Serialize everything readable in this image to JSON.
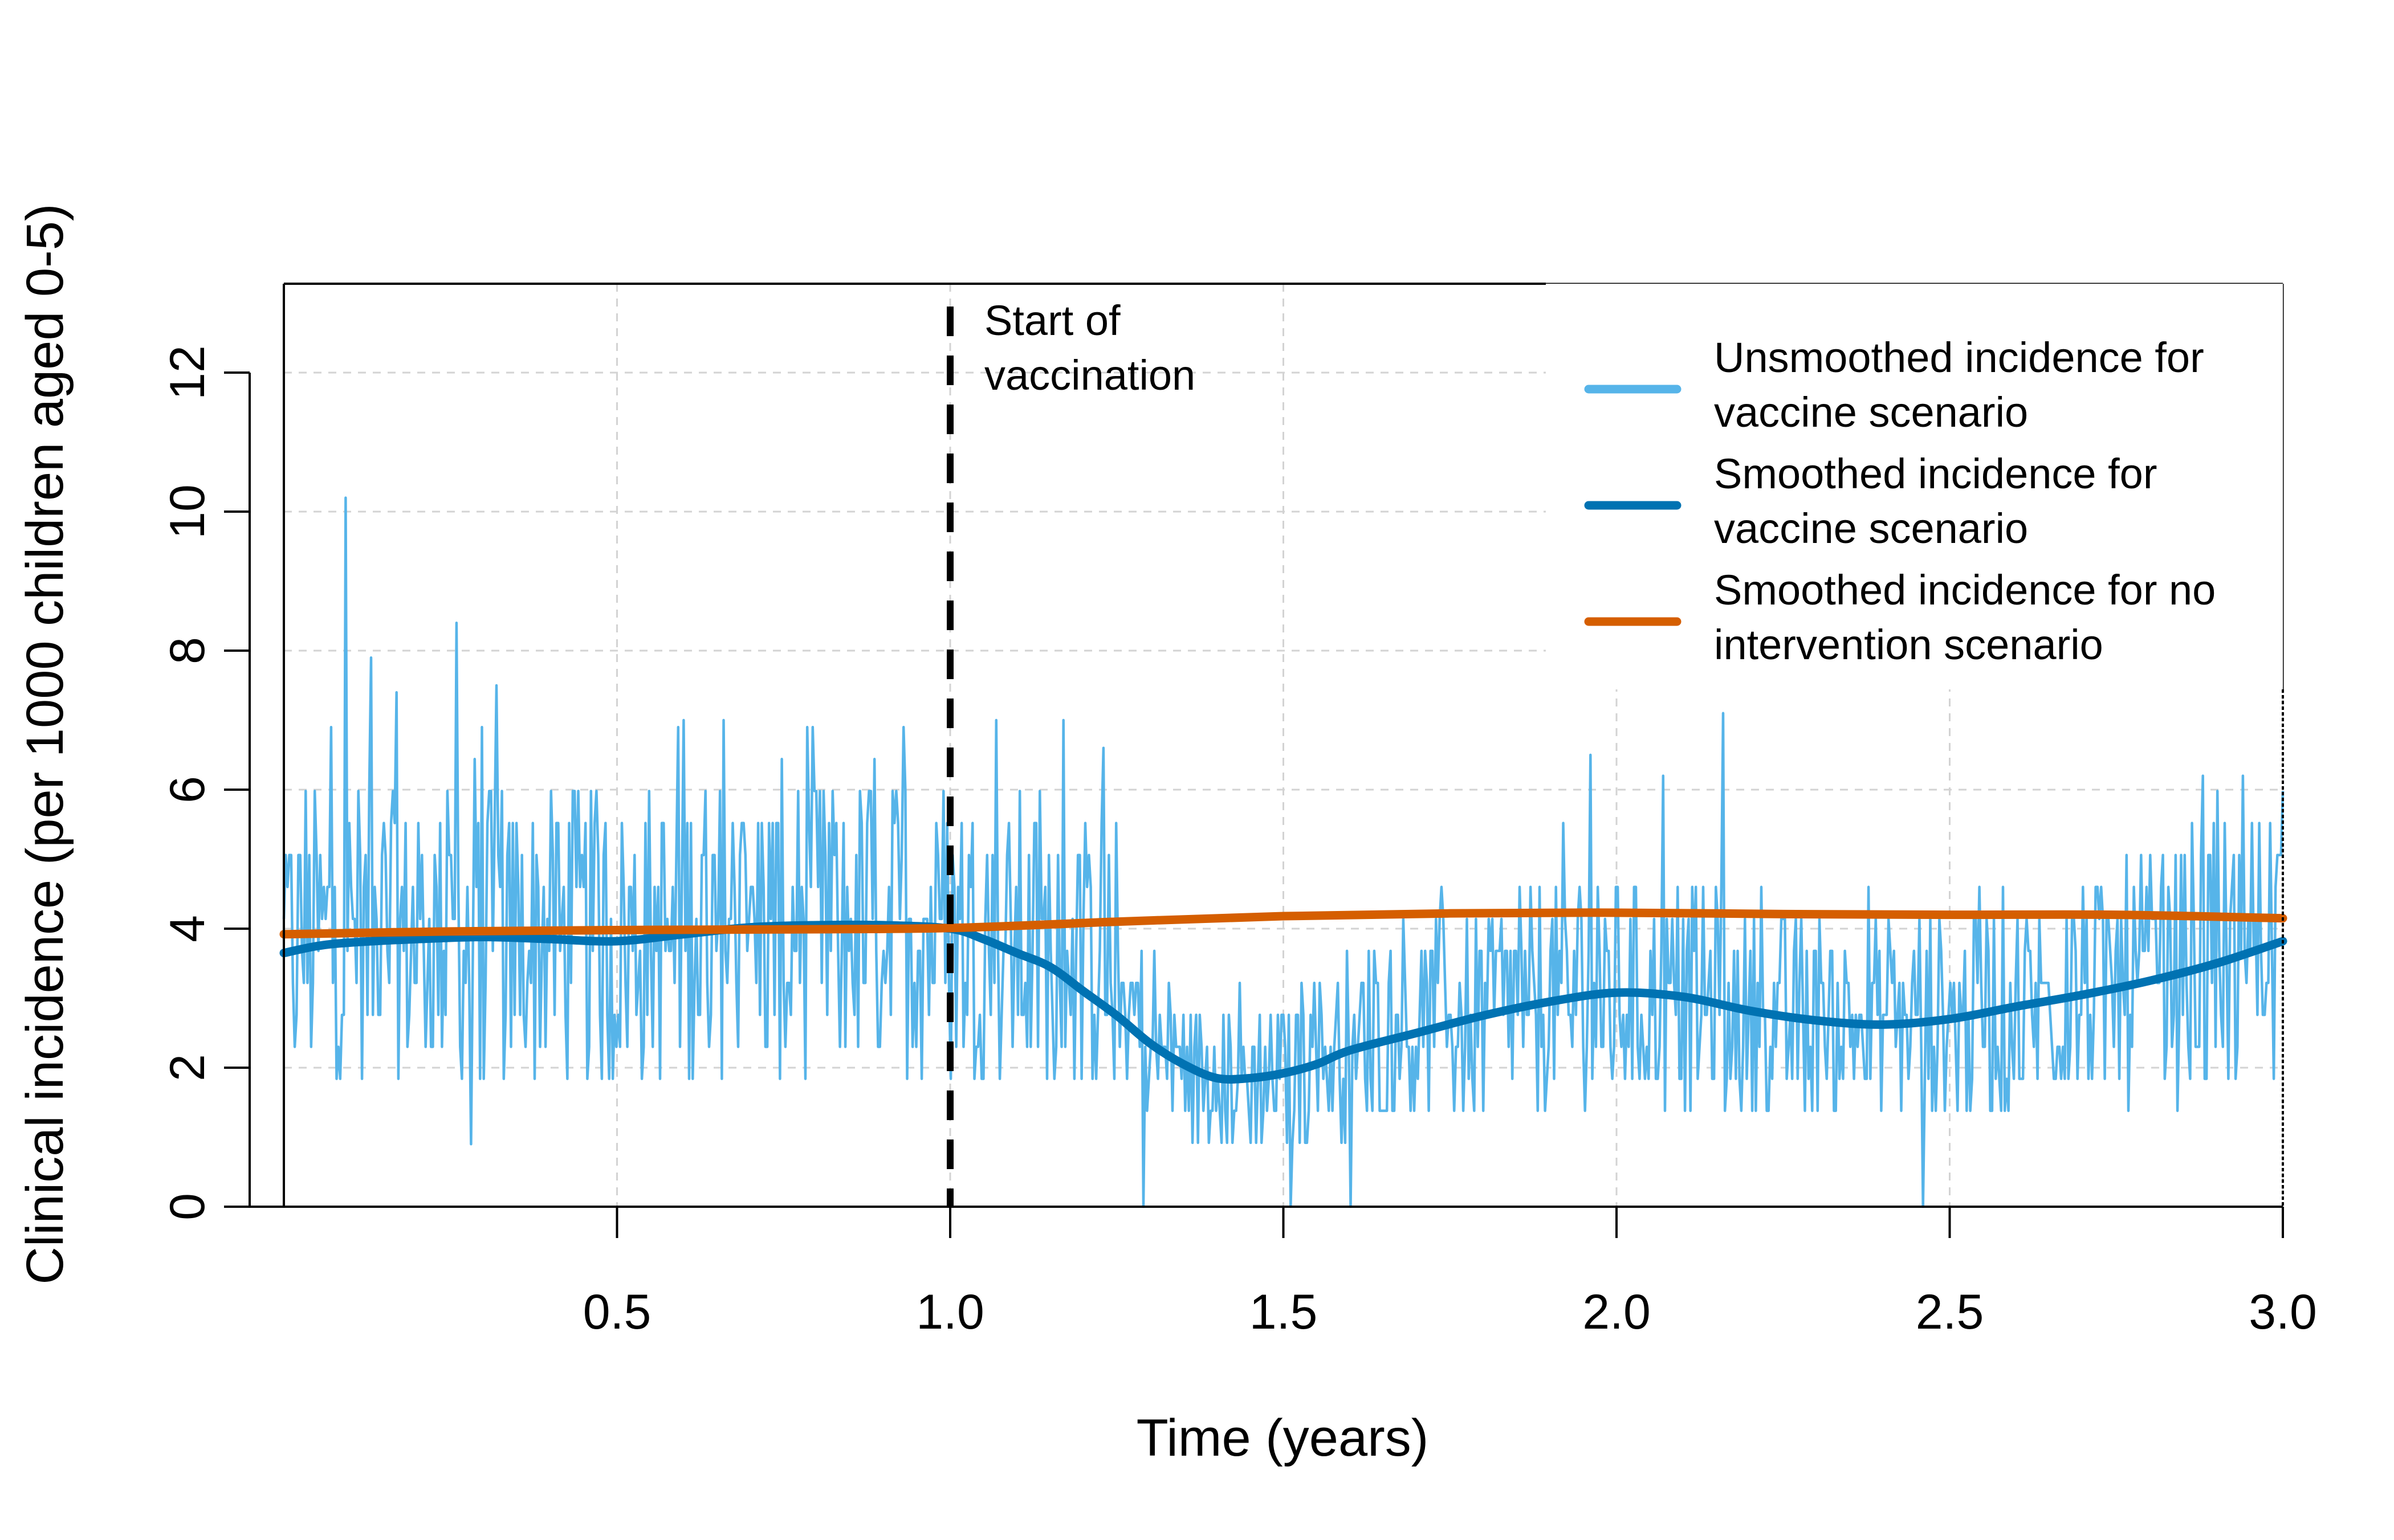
{
  "chart_data": {
    "type": "line",
    "title": "",
    "xlabel": "Time (years)",
    "ylabel": "Clinical incidence (per 1000 children aged 0-5)",
    "xlim": [
      0.0,
      3.0
    ],
    "ylim": [
      0,
      13.2
    ],
    "x_ticks": [
      0.5,
      1.0,
      1.5,
      2.0,
      2.5,
      3.0
    ],
    "x_tick_labels": [
      "0.5",
      "1.0",
      "1.5",
      "2.0",
      "2.5",
      "3.0"
    ],
    "y_ticks": [
      0,
      2,
      4,
      6,
      8,
      10,
      12
    ],
    "y_tick_labels": [
      "0",
      "2",
      "4",
      "6",
      "8",
      "10",
      "12"
    ],
    "grid": true,
    "legend_position": "top-right",
    "annotation": {
      "text_line1": "Start of",
      "text_line2": "vaccination",
      "x": 1.0
    },
    "series": [
      {
        "key": "unsmoothed_vaccine",
        "name_line1": "Unsmoothed incidence for",
        "name_line2": "vaccine scenario",
        "color": "#56B4E9",
        "style": "noisy",
        "x": [
          0.0,
          0.1,
          0.2,
          0.3,
          0.4,
          0.5,
          0.6,
          0.7,
          0.8,
          0.9,
          1.0,
          1.1,
          1.2,
          1.25,
          1.3,
          1.4,
          1.5,
          1.6,
          1.7,
          1.8,
          1.9,
          2.0,
          2.1,
          2.2,
          2.3,
          2.4,
          2.5,
          2.6,
          2.7,
          2.8,
          2.9,
          3.0
        ],
        "values": [
          3.7,
          3.9,
          3.9,
          3.9,
          3.85,
          3.8,
          3.9,
          4.0,
          4.05,
          4.05,
          4.0,
          3.8,
          3.6,
          3.3,
          2.2,
          1.8,
          1.9,
          2.3,
          2.6,
          2.8,
          3.0,
          3.1,
          3.0,
          2.8,
          2.65,
          2.6,
          2.7,
          2.9,
          3.1,
          3.3,
          3.6,
          3.85
        ],
        "spikes": [
          {
            "x": 0.093,
            "y": 10.2
          },
          {
            "x": 0.26,
            "y": 8.4
          },
          {
            "x": 0.13,
            "y": 7.9
          },
          {
            "x": 0.17,
            "y": 7.4
          },
          {
            "x": 0.32,
            "y": 7.5
          },
          {
            "x": 0.6,
            "y": 7.0
          },
          {
            "x": 0.66,
            "y": 7.0
          },
          {
            "x": 0.07,
            "y": 6.9
          },
          {
            "x": 0.93,
            "y": 6.9
          },
          {
            "x": 1.07,
            "y": 7.0
          },
          {
            "x": 1.17,
            "y": 7.0
          },
          {
            "x": 1.23,
            "y": 6.6
          },
          {
            "x": 1.96,
            "y": 6.5
          },
          {
            "x": 2.07,
            "y": 6.2
          },
          {
            "x": 2.16,
            "y": 7.1
          },
          {
            "x": 2.88,
            "y": 6.2
          },
          {
            "x": 2.94,
            "y": 6.2
          },
          {
            "x": 2.46,
            "y": 0.0
          },
          {
            "x": 1.29,
            "y": 0.0
          },
          {
            "x": 1.6,
            "y": 0.0
          },
          {
            "x": 1.51,
            "y": 0.0
          },
          {
            "x": 0.28,
            "y": 0.9
          }
        ]
      },
      {
        "key": "smoothed_vaccine",
        "name_line1": "Smoothed incidence for",
        "name_line2": "vaccine scenario",
        "color": "#0072B2",
        "style": "smooth",
        "x": [
          0.0,
          0.05,
          0.1,
          0.2,
          0.3,
          0.4,
          0.5,
          0.6,
          0.7,
          0.8,
          0.9,
          1.0,
          1.05,
          1.1,
          1.15,
          1.2,
          1.25,
          1.3,
          1.35,
          1.4,
          1.45,
          1.5,
          1.55,
          1.6,
          1.7,
          1.8,
          1.9,
          2.0,
          2.1,
          2.2,
          2.3,
          2.4,
          2.5,
          2.6,
          2.7,
          2.8,
          2.9,
          3.0
        ],
        "values": [
          3.65,
          3.75,
          3.8,
          3.85,
          3.88,
          3.85,
          3.82,
          3.92,
          4.02,
          4.05,
          4.05,
          4.0,
          3.85,
          3.65,
          3.45,
          3.1,
          2.75,
          2.35,
          2.05,
          1.85,
          1.85,
          1.92,
          2.05,
          2.25,
          2.5,
          2.75,
          2.95,
          3.08,
          3.02,
          2.82,
          2.68,
          2.62,
          2.7,
          2.88,
          3.05,
          3.25,
          3.5,
          3.82
        ]
      },
      {
        "key": "smoothed_no_intervention",
        "name_line1": "Smoothed incidence for no",
        "name_line2": "intervention scenario",
        "color": "#D55E00",
        "style": "smooth",
        "x": [
          0.0,
          0.25,
          0.5,
          0.75,
          1.0,
          1.25,
          1.5,
          1.75,
          2.0,
          2.25,
          2.5,
          2.75,
          3.0
        ],
        "values": [
          3.92,
          3.96,
          3.98,
          3.99,
          4.01,
          4.1,
          4.18,
          4.22,
          4.23,
          4.21,
          4.2,
          4.2,
          4.15
        ]
      }
    ]
  }
}
